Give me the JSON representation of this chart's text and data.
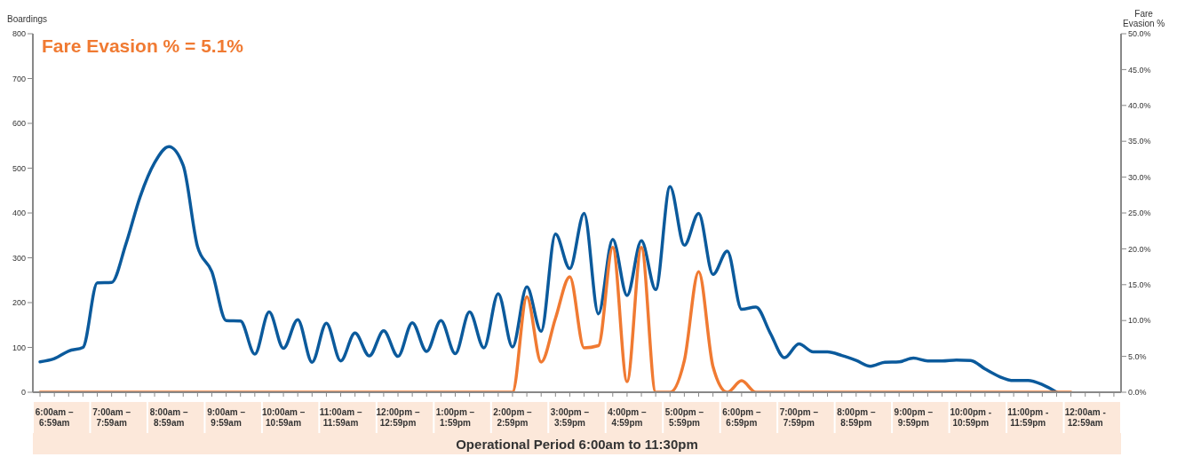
{
  "chart_data": {
    "type": "line",
    "ylabel": "Boardings",
    "y2label": "Fare Evasion %",
    "xlabel": "Operational Period 6:00am to 11:30pm",
    "annotations": [
      "Fare Evasion % = 5.1%"
    ],
    "categories": [
      null,
      "6:00am – 6:59am",
      null,
      null,
      null,
      "7:00am – 7:59am",
      null,
      null,
      null,
      "8:00am – 8:59am",
      null,
      null,
      null,
      "9:00am – 9:59am",
      null,
      null,
      null,
      "10:00am – 10:59am",
      null,
      null,
      null,
      "11:00am – 11:59am",
      null,
      null,
      null,
      "12:00pm – 12:59pm",
      null,
      null,
      null,
      "1:00pm – 1:59pm",
      null,
      null,
      null,
      "2:00pm – 2:59pm",
      null,
      null,
      null,
      "3:00pm – 3:59pm",
      null,
      null,
      null,
      "4:00pm – 4:59pm",
      null,
      null,
      null,
      "5:00pm – 5:59pm",
      null,
      null,
      null,
      "6:00pm – 6:59pm",
      null,
      null,
      null,
      "7:00pm – 7:59pm",
      null,
      null,
      null,
      "8:00pm – 8:59pm",
      null,
      null,
      null,
      "9:00pm – 9:59pm",
      null,
      null,
      null,
      "10:00pm - 10:59pm",
      null,
      null,
      null,
      "11:00pm - 11:59pm",
      null,
      null,
      null,
      "12:00am - 12:59am",
      null,
      null
    ],
    "ylim": [
      0,
      800
    ],
    "yticks": [
      0,
      100,
      200,
      300,
      400,
      500,
      600,
      700,
      800
    ],
    "y2lim": [
      0,
      50
    ],
    "y2ticks": [
      {
        "value": 0,
        "label": "0.0%"
      },
      {
        "value": 5,
        "label": "5.0%"
      },
      {
        "value": 10,
        "label": "10.0%"
      },
      {
        "value": 15,
        "label": "15.0%"
      },
      {
        "value": 20,
        "label": "20.0%"
      },
      {
        "value": 25,
        "label": "25.0%"
      },
      {
        "value": 30,
        "label": "30.0%"
      },
      {
        "value": 35,
        "label": "35.0%"
      },
      {
        "value": 40,
        "label": "40.0%"
      },
      {
        "value": 45,
        "label": "45.0%"
      },
      {
        "value": 50,
        "label": "50.0%"
      }
    ],
    "series": [
      {
        "color": "#0b5a9c",
        "values": [
          68,
          75,
          92,
          100,
          244,
          245,
          331,
          437,
          512,
          548,
          506,
          325,
          269,
          160,
          159,
          85,
          179,
          98,
          162,
          67,
          154,
          70,
          132,
          81,
          137,
          80,
          155,
          91,
          160,
          86,
          179,
          99,
          220,
          101,
          235,
          136,
          353,
          276,
          399,
          175,
          341,
          216,
          338,
          229,
          459,
          328,
          399,
          263,
          315,
          185,
          190,
          132,
          77,
          108,
          90,
          90,
          82,
          71,
          58,
          67,
          68,
          76,
          70,
          70,
          72,
          71,
          52,
          35,
          26,
          26,
          17,
          0,
          null,
          null,
          null,
          null
        ]
      },
      {
        "color": "#f07a32",
        "axis": "y2",
        "values": [
          0,
          0,
          0,
          0,
          0,
          0,
          0,
          0,
          0,
          0,
          0,
          0,
          0,
          0,
          0,
          0,
          0,
          0,
          0,
          0,
          0,
          0,
          0,
          0,
          0,
          0,
          0,
          0,
          0,
          0,
          0,
          0,
          0,
          0,
          13.3,
          4.2,
          10.3,
          16.1,
          6.2,
          6.5,
          20.2,
          1.5,
          20.2,
          0,
          0,
          4.4,
          16.8,
          3.6,
          0,
          1.6,
          0,
          0,
          0,
          0,
          0,
          0,
          0,
          0,
          0,
          0,
          0,
          0,
          0,
          0,
          0,
          0,
          0,
          0,
          0,
          0,
          0,
          0,
          0,
          null,
          null,
          null
        ]
      }
    ]
  }
}
